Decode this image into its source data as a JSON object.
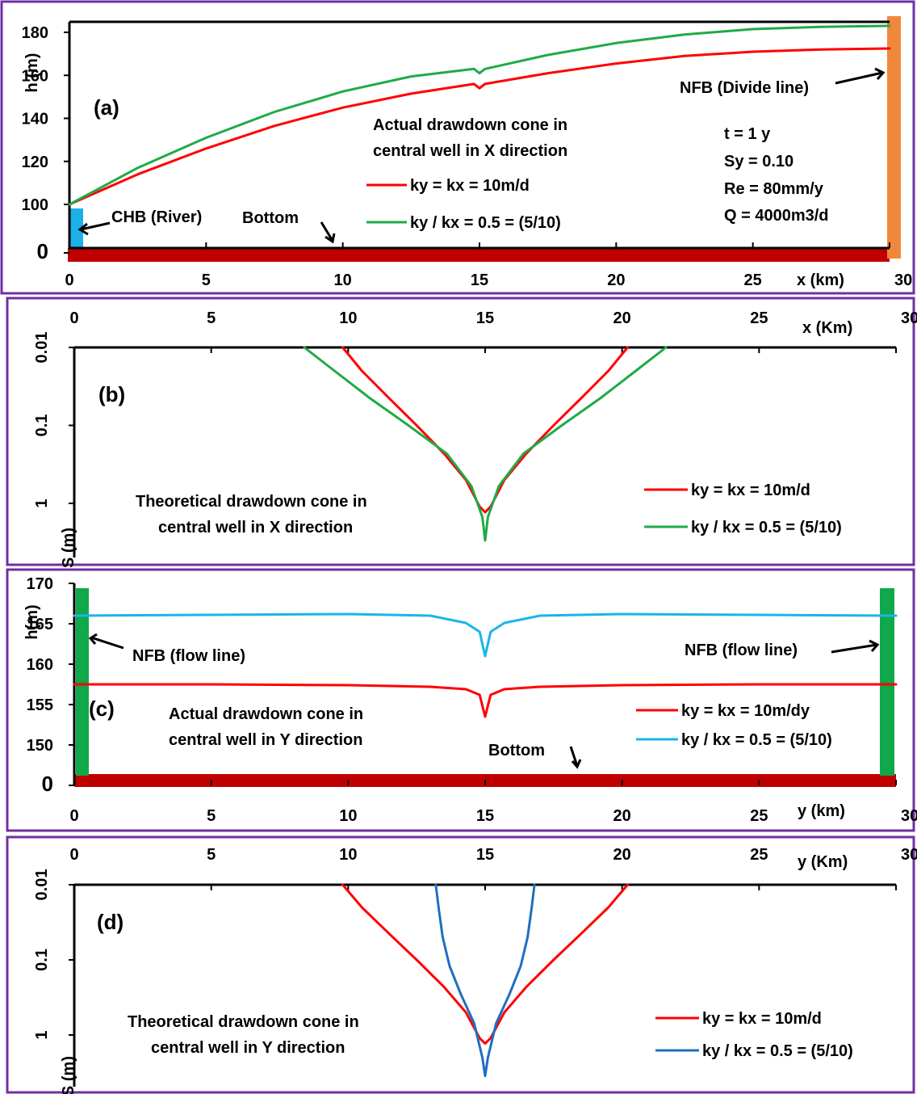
{
  "colors": {
    "frame": "#7030a0",
    "red": "#ff0000",
    "green": "#1faa48",
    "lightblue": "#1ab5ea",
    "darkblue": "#1f6fbf",
    "bottom": "#c00000",
    "chb": "#1ab0e8",
    "nfb_divide": "#f0883a",
    "nfb_flow": "#0fa84a"
  },
  "chart_data": [
    {
      "id": "a",
      "type": "line",
      "panel_label": "(a)",
      "xlabel": "x (km)",
      "ylabel": "h (m)",
      "xlim": [
        0,
        30
      ],
      "x_ticks": [
        "0",
        "5",
        "10",
        "15",
        "20",
        "25",
        "30"
      ],
      "y_ticks": [
        "0",
        "100",
        "120",
        "140",
        "160",
        "180"
      ],
      "title_lines": [
        "Actual drawdown cone in",
        "central well in X direction"
      ],
      "params": [
        "t = 1 y",
        "Sy = 0.10",
        "Re = 80mm/y",
        "Q = 4000m3/d"
      ],
      "annotations": {
        "chb": "CHB (River)",
        "bottom": "Bottom",
        "nfb": "NFB (Divide line)"
      },
      "series": [
        {
          "name": "ky = kx = 10m/d",
          "color": "red",
          "x": [
            0,
            2.5,
            5,
            7.5,
            10,
            12.5,
            14.8,
            15,
            15.2,
            17.5,
            20,
            22.5,
            25,
            27.5,
            30
          ],
          "y": [
            100,
            114,
            126,
            136.5,
            145,
            151.5,
            156,
            154,
            156,
            161,
            165.5,
            169,
            171,
            172,
            172.5
          ]
        },
        {
          "name": "ky / kx = 0.5 = (5/10)",
          "color": "green",
          "x": [
            0,
            2.5,
            5,
            7.5,
            10,
            12.5,
            14.8,
            15,
            15.2,
            17.5,
            20,
            22.5,
            25,
            27.5,
            30
          ],
          "y": [
            100,
            117,
            131,
            143,
            152.5,
            159.5,
            163,
            161,
            163,
            169.5,
            175,
            179,
            181.5,
            182.5,
            183
          ]
        }
      ]
    },
    {
      "id": "b",
      "type": "line",
      "panel_label": "(b)",
      "xlabel": "x (Km)",
      "ylabel": "S (m)",
      "xlim": [
        0,
        30
      ],
      "y_scale": "log",
      "x_ticks": [
        "0",
        "5",
        "10",
        "15",
        "20",
        "25",
        "30"
      ],
      "y_ticks": [
        "0.01",
        "0.1",
        "1"
      ],
      "title_lines": [
        "Theoretical drawdown cone in",
        "central well in X direction"
      ],
      "series": [
        {
          "name": "ky = kx = 10m/d",
          "color": "red",
          "x": [
            9.8,
            10.5,
            11.5,
            12.5,
            13.5,
            14.3,
            14.8,
            15,
            15.2,
            15.7,
            16.5,
            17.5,
            18.5,
            19.5,
            20.2
          ],
          "y": [
            0.01,
            0.02,
            0.045,
            0.1,
            0.23,
            0.5,
            1.1,
            1.3,
            1.1,
            0.5,
            0.23,
            0.1,
            0.045,
            0.02,
            0.01
          ]
        },
        {
          "name": "ky / kx = 0.5 = (5/10)",
          "color": "green",
          "x": [
            8.4,
            9.5,
            10.8,
            12.2,
            13.6,
            14.5,
            14.9,
            15,
            15.1,
            15.5,
            16.4,
            17.8,
            19.2,
            20.5,
            21.6
          ],
          "y": [
            0.01,
            0.02,
            0.045,
            0.1,
            0.23,
            0.6,
            1.5,
            3,
            1.5,
            0.6,
            0.23,
            0.1,
            0.045,
            0.02,
            0.01
          ]
        }
      ]
    },
    {
      "id": "c",
      "type": "line",
      "panel_label": "(c)",
      "xlabel": "y (km)",
      "ylabel": "h(m)",
      "xlim": [
        0,
        30
      ],
      "x_ticks": [
        "0",
        "5",
        "10",
        "15",
        "20",
        "25",
        "30"
      ],
      "y_ticks": [
        "0",
        "150",
        "155",
        "160",
        "165",
        "170"
      ],
      "title_lines": [
        "Actual drawdown cone in",
        "central well in Y direction"
      ],
      "annotations": {
        "nfb_left": "NFB (flow line)",
        "nfb_right": "NFB (flow line)",
        "bottom": "Bottom"
      },
      "series": [
        {
          "name": "ky = kx = 10m/dy",
          "color": "red",
          "x": [
            0,
            5,
            10,
            13,
            14.3,
            14.8,
            15,
            15.2,
            15.7,
            17,
            20,
            25,
            30
          ],
          "y": [
            157.5,
            157.5,
            157.4,
            157.2,
            156.9,
            156.2,
            153.5,
            156.2,
            156.9,
            157.2,
            157.4,
            157.5,
            157.5
          ]
        },
        {
          "name": "ky / kx = 0.5 = (5/10)",
          "color": "lightblue",
          "x": [
            0,
            5,
            10,
            13,
            14.3,
            14.8,
            15,
            15.2,
            15.7,
            17,
            20,
            25,
            30
          ],
          "y": [
            166,
            166.1,
            166.2,
            166,
            165.1,
            164,
            161,
            164,
            165.1,
            166,
            166.2,
            166.1,
            166
          ]
        }
      ]
    },
    {
      "id": "d",
      "type": "line",
      "panel_label": "(d)",
      "xlabel": "y (Km)",
      "ylabel": "S (m)",
      "xlim": [
        0,
        30
      ],
      "y_scale": "log",
      "x_ticks": [
        "0",
        "5",
        "10",
        "15",
        "20",
        "25",
        "30"
      ],
      "y_ticks": [
        "0.01",
        "0.1",
        "1"
      ],
      "title_lines": [
        "Theoretical drawdown cone in",
        "central well in Y direction"
      ],
      "series": [
        {
          "name": "ky = kx = 10m/d",
          "color": "red",
          "x": [
            9.8,
            10.5,
            11.5,
            12.5,
            13.5,
            14.3,
            14.8,
            15,
            15.2,
            15.7,
            16.5,
            17.5,
            18.5,
            19.5,
            20.2
          ],
          "y": [
            0.01,
            0.02,
            0.045,
            0.1,
            0.23,
            0.5,
            1.1,
            1.3,
            1.1,
            0.5,
            0.23,
            0.1,
            0.045,
            0.02,
            0.01
          ]
        },
        {
          "name": "ky / kx = 0.5 = (5/10)",
          "color": "darkblue",
          "x": [
            13.2,
            13.3,
            13.45,
            13.7,
            14.1,
            14.6,
            14.9,
            15,
            15.1,
            15.4,
            15.9,
            16.3,
            16.55,
            16.7,
            16.8
          ],
          "y": [
            0.01,
            0.02,
            0.05,
            0.12,
            0.28,
            0.7,
            2,
            3.5,
            2,
            0.7,
            0.28,
            0.12,
            0.05,
            0.02,
            0.01
          ]
        }
      ]
    }
  ]
}
